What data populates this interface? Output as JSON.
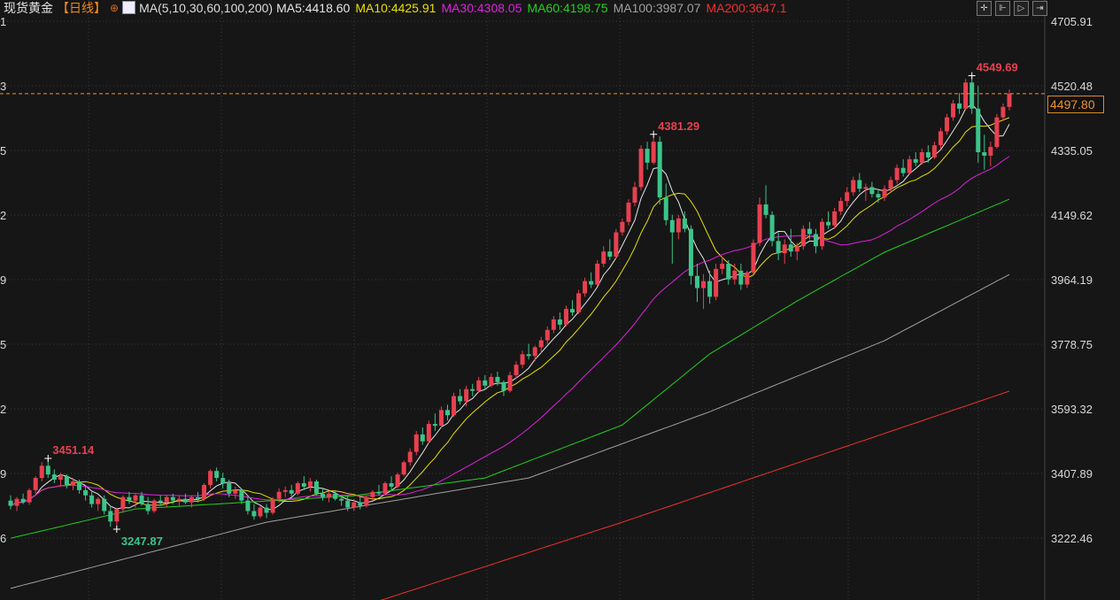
{
  "header": {
    "title": "现货黄金",
    "period": "【日线】",
    "target_icon": "crosshair-circle-icon",
    "ma_icon": "indicator-chart-icon",
    "ma_label": "MA(5,10,30,60,100,200)",
    "ma_values": [
      {
        "text": "MA5:4418.60",
        "color": "#e6e6e6"
      },
      {
        "text": "MA10:4425.91",
        "color": "#e8e000"
      },
      {
        "text": "MA30:4308.05",
        "color": "#e020e0"
      },
      {
        "text": "MA60:4198.75",
        "color": "#20d020"
      },
      {
        "text": "MA100:3987.07",
        "color": "#a0a0a0"
      },
      {
        "text": "MA200:3647.1",
        "color": "#f03030"
      }
    ]
  },
  "toolbar": [
    {
      "name": "crosshair-tool",
      "icon": "crosshair-icon",
      "glyph": "✛"
    },
    {
      "name": "range-start-tool",
      "icon": "range-start-icon",
      "glyph": "⊩"
    },
    {
      "name": "play-tool",
      "icon": "play-icon",
      "glyph": "▷"
    },
    {
      "name": "range-end-tool",
      "icon": "range-end-icon",
      "glyph": "⇥"
    }
  ],
  "current_price": {
    "value": 4497.8,
    "label": "4497.80",
    "color": "#f09030"
  },
  "left_axis_fragments": [
    "1",
    "3",
    "5",
    "2",
    "9",
    "5",
    "2",
    "9",
    "6"
  ],
  "chart_data": {
    "type": "candlestick",
    "ylim": [
      3060,
      4760
    ],
    "yticks": [
      4705.91,
      4520.48,
      4335.05,
      4149.62,
      3964.19,
      3778.75,
      3593.32,
      3407.89,
      3222.46
    ],
    "ytick_labels": [
      "4705.91",
      "4520.48",
      "4335.05",
      "4149.62",
      "3964.19",
      "3778.75",
      "3593.32",
      "3407.89",
      "3222.46"
    ],
    "grid": true,
    "colors": {
      "up": "#e8404f",
      "down": "#3cc48a",
      "background": "#161616",
      "grid": "#3a3a3a"
    },
    "annotations": [
      {
        "index": 6,
        "value": 3451.14,
        "text": "3451.14",
        "pos": "high",
        "color": "#e8404f"
      },
      {
        "index": 17,
        "value": 3247.87,
        "text": "3247.87",
        "pos": "low",
        "color": "#3cc48a"
      },
      {
        "index": 103,
        "value": 4381.29,
        "text": "4381.29",
        "pos": "high",
        "color": "#e8404f"
      },
      {
        "index": 154,
        "value": 4549.69,
        "text": "4549.69",
        "pos": "high",
        "color": "#e8404f"
      }
    ],
    "candles": [
      [
        3330,
        3345,
        3305,
        3315
      ],
      [
        3315,
        3340,
        3300,
        3335
      ],
      [
        3335,
        3350,
        3320,
        3325
      ],
      [
        3325,
        3365,
        3318,
        3360
      ],
      [
        3360,
        3400,
        3350,
        3395
      ],
      [
        3395,
        3440,
        3385,
        3430
      ],
      [
        3430,
        3451.14,
        3395,
        3405
      ],
      [
        3405,
        3420,
        3380,
        3390
      ],
      [
        3390,
        3410,
        3370,
        3400
      ],
      [
        3400,
        3405,
        3365,
        3375
      ],
      [
        3375,
        3395,
        3360,
        3385
      ],
      [
        3385,
        3390,
        3350,
        3360
      ],
      [
        3360,
        3375,
        3330,
        3345
      ],
      [
        3345,
        3355,
        3310,
        3320
      ],
      [
        3320,
        3340,
        3300,
        3335
      ],
      [
        3335,
        3345,
        3290,
        3300
      ],
      [
        3300,
        3315,
        3255,
        3270
      ],
      [
        3270,
        3310,
        3247.87,
        3305
      ],
      [
        3305,
        3345,
        3295,
        3340
      ],
      [
        3340,
        3355,
        3320,
        3330
      ],
      [
        3330,
        3350,
        3310,
        3345
      ],
      [
        3345,
        3355,
        3315,
        3320
      ],
      [
        3320,
        3340,
        3290,
        3300
      ],
      [
        3300,
        3335,
        3295,
        3330
      ],
      [
        3330,
        3345,
        3315,
        3325
      ],
      [
        3325,
        3345,
        3310,
        3340
      ],
      [
        3340,
        3350,
        3320,
        3330
      ],
      [
        3330,
        3345,
        3315,
        3335
      ],
      [
        3335,
        3350,
        3320,
        3325
      ],
      [
        3325,
        3345,
        3310,
        3340
      ],
      [
        3340,
        3355,
        3325,
        3335
      ],
      [
        3335,
        3380,
        3330,
        3375
      ],
      [
        3375,
        3420,
        3365,
        3415
      ],
      [
        3415,
        3425,
        3385,
        3395
      ],
      [
        3395,
        3410,
        3365,
        3380
      ],
      [
        3380,
        3390,
        3340,
        3350
      ],
      [
        3350,
        3370,
        3335,
        3360
      ],
      [
        3360,
        3365,
        3320,
        3330
      ],
      [
        3330,
        3345,
        3290,
        3300
      ],
      [
        3300,
        3320,
        3275,
        3285
      ],
      [
        3285,
        3315,
        3280,
        3310
      ],
      [
        3310,
        3320,
        3280,
        3295
      ],
      [
        3295,
        3340,
        3290,
        3335
      ],
      [
        3335,
        3365,
        3325,
        3355
      ],
      [
        3355,
        3370,
        3340,
        3360
      ],
      [
        3360,
        3375,
        3340,
        3350
      ],
      [
        3350,
        3385,
        3345,
        3380
      ],
      [
        3380,
        3400,
        3360,
        3370
      ],
      [
        3370,
        3395,
        3355,
        3385
      ],
      [
        3385,
        3390,
        3345,
        3350
      ],
      [
        3350,
        3365,
        3330,
        3340
      ],
      [
        3340,
        3355,
        3325,
        3350
      ],
      [
        3350,
        3360,
        3330,
        3335
      ],
      [
        3335,
        3345,
        3315,
        3330
      ],
      [
        3330,
        3345,
        3300,
        3310
      ],
      [
        3310,
        3335,
        3300,
        3325
      ],
      [
        3325,
        3340,
        3305,
        3315
      ],
      [
        3315,
        3345,
        3310,
        3340
      ],
      [
        3340,
        3360,
        3330,
        3355
      ],
      [
        3355,
        3375,
        3345,
        3350
      ],
      [
        3350,
        3385,
        3345,
        3380
      ],
      [
        3380,
        3400,
        3360,
        3370
      ],
      [
        3370,
        3410,
        3365,
        3405
      ],
      [
        3405,
        3445,
        3400,
        3440
      ],
      [
        3440,
        3480,
        3430,
        3470
      ],
      [
        3470,
        3530,
        3460,
        3520
      ],
      [
        3520,
        3540,
        3490,
        3500
      ],
      [
        3500,
        3560,
        3495,
        3550
      ],
      [
        3550,
        3580,
        3530,
        3545
      ],
      [
        3545,
        3600,
        3540,
        3590
      ],
      [
        3590,
        3605,
        3560,
        3575
      ],
      [
        3575,
        3640,
        3570,
        3630
      ],
      [
        3630,
        3650,
        3605,
        3615
      ],
      [
        3615,
        3660,
        3600,
        3650
      ],
      [
        3650,
        3665,
        3630,
        3645
      ],
      [
        3645,
        3685,
        3640,
        3675
      ],
      [
        3675,
        3690,
        3650,
        3660
      ],
      [
        3660,
        3695,
        3655,
        3685
      ],
      [
        3685,
        3700,
        3660,
        3670
      ],
      [
        3670,
        3675,
        3630,
        3645
      ],
      [
        3645,
        3700,
        3640,
        3690
      ],
      [
        3690,
        3730,
        3680,
        3720
      ],
      [
        3720,
        3760,
        3710,
        3750
      ],
      [
        3750,
        3780,
        3735,
        3745
      ],
      [
        3745,
        3775,
        3730,
        3770
      ],
      [
        3770,
        3800,
        3755,
        3790
      ],
      [
        3790,
        3830,
        3780,
        3820
      ],
      [
        3820,
        3860,
        3810,
        3850
      ],
      [
        3850,
        3870,
        3820,
        3835
      ],
      [
        3835,
        3890,
        3830,
        3880
      ],
      [
        3880,
        3905,
        3860,
        3870
      ],
      [
        3870,
        3935,
        3865,
        3925
      ],
      [
        3925,
        3970,
        3915,
        3960
      ],
      [
        3960,
        3985,
        3940,
        3950
      ],
      [
        3950,
        4020,
        3945,
        4010
      ],
      [
        4010,
        4060,
        4000,
        4045
      ],
      [
        4045,
        4080,
        4020,
        4030
      ],
      [
        4030,
        4110,
        4025,
        4100
      ],
      [
        4100,
        4140,
        4090,
        4130
      ],
      [
        4130,
        4195,
        4120,
        4185
      ],
      [
        4185,
        4245,
        4175,
        4230
      ],
      [
        4230,
        4350,
        4220,
        4340
      ],
      [
        4340,
        4360,
        4280,
        4300
      ],
      [
        4300,
        4381.29,
        4295,
        4360
      ],
      [
        4360,
        4375,
        4180,
        4200
      ],
      [
        4200,
        4240,
        4120,
        4135
      ],
      [
        4135,
        4150,
        4010,
        4100
      ],
      [
        4100,
        4150,
        4080,
        4140
      ],
      [
        4140,
        4160,
        4100,
        4110
      ],
      [
        4110,
        4120,
        3950,
        3975
      ],
      [
        3975,
        4010,
        3900,
        3940
      ],
      [
        3940,
        3980,
        3880,
        3960
      ],
      [
        3960,
        3990,
        3895,
        3915
      ],
      [
        3915,
        4010,
        3905,
        3995
      ],
      [
        3995,
        4030,
        3980,
        4010
      ],
      [
        4010,
        4020,
        3950,
        3965
      ],
      [
        3965,
        4010,
        3950,
        3990
      ],
      [
        3990,
        4010,
        3935,
        3950
      ],
      [
        3950,
        3990,
        3940,
        3985
      ],
      [
        3985,
        4080,
        3980,
        4070
      ],
      [
        4070,
        4200,
        4060,
        4180
      ],
      [
        4180,
        4235,
        4140,
        4150
      ],
      [
        4150,
        4160,
        4060,
        4075
      ],
      [
        4075,
        4100,
        4020,
        4040
      ],
      [
        4040,
        4080,
        4010,
        4065
      ],
      [
        4065,
        4110,
        4030,
        4045
      ],
      [
        4045,
        4070,
        4020,
        4060
      ],
      [
        4060,
        4120,
        4050,
        4110
      ],
      [
        4110,
        4130,
        4080,
        4095
      ],
      [
        4095,
        4110,
        4040,
        4060
      ],
      [
        4060,
        4140,
        4050,
        4130
      ],
      [
        4130,
        4160,
        4110,
        4120
      ],
      [
        4120,
        4170,
        4110,
        4160
      ],
      [
        4160,
        4200,
        4150,
        4190
      ],
      [
        4190,
        4230,
        4175,
        4215
      ],
      [
        4215,
        4260,
        4205,
        4250
      ],
      [
        4250,
        4270,
        4215,
        4225
      ],
      [
        4225,
        4240,
        4190,
        4230
      ],
      [
        4230,
        4245,
        4200,
        4210
      ],
      [
        4210,
        4225,
        4185,
        4200
      ],
      [
        4200,
        4235,
        4190,
        4225
      ],
      [
        4225,
        4260,
        4215,
        4250
      ],
      [
        4250,
        4295,
        4240,
        4285
      ],
      [
        4285,
        4310,
        4260,
        4270
      ],
      [
        4270,
        4320,
        4265,
        4310
      ],
      [
        4310,
        4330,
        4290,
        4300
      ],
      [
        4300,
        4340,
        4295,
        4330
      ],
      [
        4330,
        4350,
        4300,
        4315
      ],
      [
        4315,
        4360,
        4310,
        4350
      ],
      [
        4350,
        4400,
        4340,
        4390
      ],
      [
        4390,
        4440,
        4380,
        4430
      ],
      [
        4430,
        4480,
        4420,
        4470
      ],
      [
        4470,
        4500,
        4440,
        4455
      ],
      [
        4455,
        4540,
        4450,
        4530
      ],
      [
        4530,
        4549.69,
        4440,
        4455
      ],
      [
        4455,
        4520,
        4300,
        4330
      ],
      [
        4330,
        4380,
        4280,
        4320
      ],
      [
        4320,
        4360,
        4290,
        4345
      ],
      [
        4345,
        4440,
        4340,
        4430
      ],
      [
        4430,
        4470,
        4420,
        4460
      ],
      [
        4460,
        4510,
        4450,
        4497.8
      ]
    ],
    "moving_averages": [
      {
        "name": "MA5",
        "period": 5,
        "color": "#e6e6e6"
      },
      {
        "name": "MA10",
        "period": 10,
        "color": "#e8e000"
      },
      {
        "name": "MA30",
        "period": 30,
        "color": "#e020e0"
      },
      {
        "name": "MA60",
        "color": "#20d020",
        "points": [
          [
            0,
            3222
          ],
          [
            20,
            3306
          ],
          [
            55,
            3344
          ],
          [
            76,
            3395
          ],
          [
            98,
            3547
          ],
          [
            112,
            3751
          ],
          [
            126,
            3903
          ],
          [
            140,
            4043
          ],
          [
            160,
            4195
          ]
        ]
      },
      {
        "name": "MA100",
        "color": "#a0a0a0",
        "points": [
          [
            0,
            3078
          ],
          [
            41,
            3268
          ],
          [
            83,
            3395
          ],
          [
            112,
            3585
          ],
          [
            140,
            3789
          ],
          [
            160,
            3979
          ]
        ]
      },
      {
        "name": "MA200",
        "color": "#f03030",
        "points": [
          [
            59,
            3042
          ],
          [
            98,
            3268
          ],
          [
            160,
            3644
          ]
        ]
      }
    ]
  }
}
